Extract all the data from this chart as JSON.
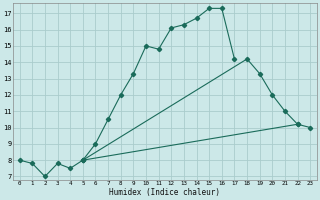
{
  "title": "",
  "xlabel": "Humidex (Indice chaleur)",
  "bg_color": "#cce8e8",
  "grid_color": "#aacccc",
  "line_color": "#1a6b5a",
  "xlim": [
    -0.5,
    23.5
  ],
  "ylim": [
    6.8,
    17.6
  ],
  "yticks": [
    7,
    8,
    9,
    10,
    11,
    12,
    13,
    14,
    15,
    16,
    17
  ],
  "xticks": [
    0,
    1,
    2,
    3,
    4,
    5,
    6,
    7,
    8,
    9,
    10,
    11,
    12,
    13,
    14,
    15,
    16,
    17,
    18,
    19,
    20,
    21,
    22,
    23
  ],
  "line1_x": [
    0,
    1,
    2,
    3,
    4,
    5,
    6,
    7,
    8,
    9,
    10,
    11,
    12,
    13,
    14,
    15,
    16,
    17,
    18,
    19
  ],
  "line1_y": [
    8.0,
    7.8,
    7.0,
    7.8,
    7.5,
    8.0,
    9.0,
    10.5,
    12.0,
    13.3,
    15.0,
    14.8,
    16.1,
    16.3,
    16.7,
    17.3,
    17.3,
    14.2,
    null,
    null
  ],
  "line2_x": [
    5,
    6,
    7,
    8,
    9,
    10,
    11,
    12,
    13,
    14,
    15,
    16,
    17,
    18,
    19,
    20,
    21,
    22
  ],
  "line2_y": [
    8.0,
    null,
    null,
    null,
    null,
    null,
    null,
    null,
    null,
    null,
    null,
    null,
    null,
    14.2,
    13.3,
    12.0,
    11.0,
    10.2
  ],
  "line2_direct": [
    [
      5,
      8.0
    ],
    [
      18,
      14.2
    ],
    [
      19,
      13.3
    ],
    [
      20,
      12.0
    ],
    [
      21,
      11.0
    ],
    [
      22,
      10.2
    ]
  ],
  "line3_direct": [
    [
      5,
      8.0
    ],
    [
      22,
      10.2
    ],
    [
      23,
      10.0
    ]
  ],
  "marker_x1": [
    0,
    1,
    2,
    3,
    4,
    5,
    6,
    7,
    8,
    9,
    10,
    11,
    12,
    13,
    14,
    15,
    16,
    17
  ],
  "marker_y1": [
    8.0,
    7.8,
    7.0,
    7.8,
    7.5,
    8.0,
    9.0,
    10.5,
    12.0,
    13.3,
    15.0,
    14.8,
    16.1,
    16.3,
    16.7,
    17.3,
    17.3,
    14.2
  ]
}
